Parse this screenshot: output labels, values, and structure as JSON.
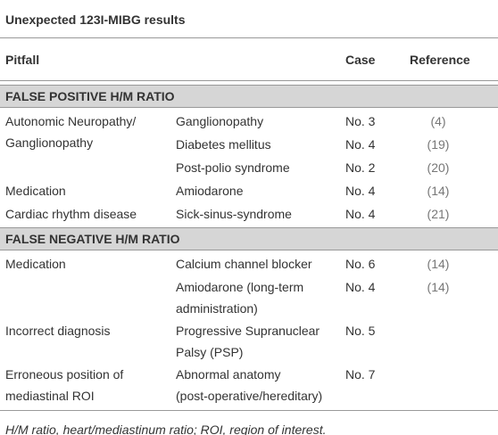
{
  "title": "Unexpected 123I-MIBG results",
  "header": {
    "pitfall": "Pitfall",
    "case": "Case",
    "reference": "Reference"
  },
  "sections": [
    {
      "label": "FALSE POSITIVE H/M RATIO",
      "rows": [
        {
          "pitfall": [
            "Autonomic Neuropathy/",
            "Ganglionopathy"
          ],
          "item": [
            "Ganglionopathy"
          ],
          "case": "No. 3",
          "reference": "(4)"
        },
        {
          "item": [
            "Diabetes mellitus"
          ],
          "case": "No. 4",
          "reference": "(19)"
        },
        {
          "item": [
            "Post-polio syndrome"
          ],
          "case": "No. 2",
          "reference": "(20)"
        },
        {
          "pitfall": [
            "Medication"
          ],
          "item": [
            "Amiodarone"
          ],
          "case": "No. 4",
          "reference": "(14)"
        },
        {
          "pitfall": [
            "Cardiac rhythm disease"
          ],
          "item": [
            "Sick-sinus-syndrome"
          ],
          "case": "No. 4",
          "reference": "(21)"
        }
      ]
    },
    {
      "label": "FALSE NEGATIVE H/M RATIO",
      "rows": [
        {
          "pitfall": [
            "Medication"
          ],
          "item": [
            "Calcium channel blocker"
          ],
          "case": "No. 6",
          "reference": "(14)"
        },
        {
          "item": [
            "Amiodarone (long-term",
            "administration)"
          ],
          "case": "No. 4",
          "reference": "(14)"
        },
        {
          "pitfall": [
            "Incorrect diagnosis"
          ],
          "item": [
            "Progressive Supranuclear",
            "Palsy (PSP)"
          ],
          "case": "No. 5"
        },
        {
          "pitfall": [
            "Erroneous position of",
            "mediastinal ROI"
          ],
          "item": [
            "Abnormal anatomy",
            "(post-operative/hereditary)"
          ],
          "case": "No. 7"
        }
      ]
    }
  ],
  "footnote": "H/M ratio, heart/mediastinum ratio; ROI, region of interest."
}
